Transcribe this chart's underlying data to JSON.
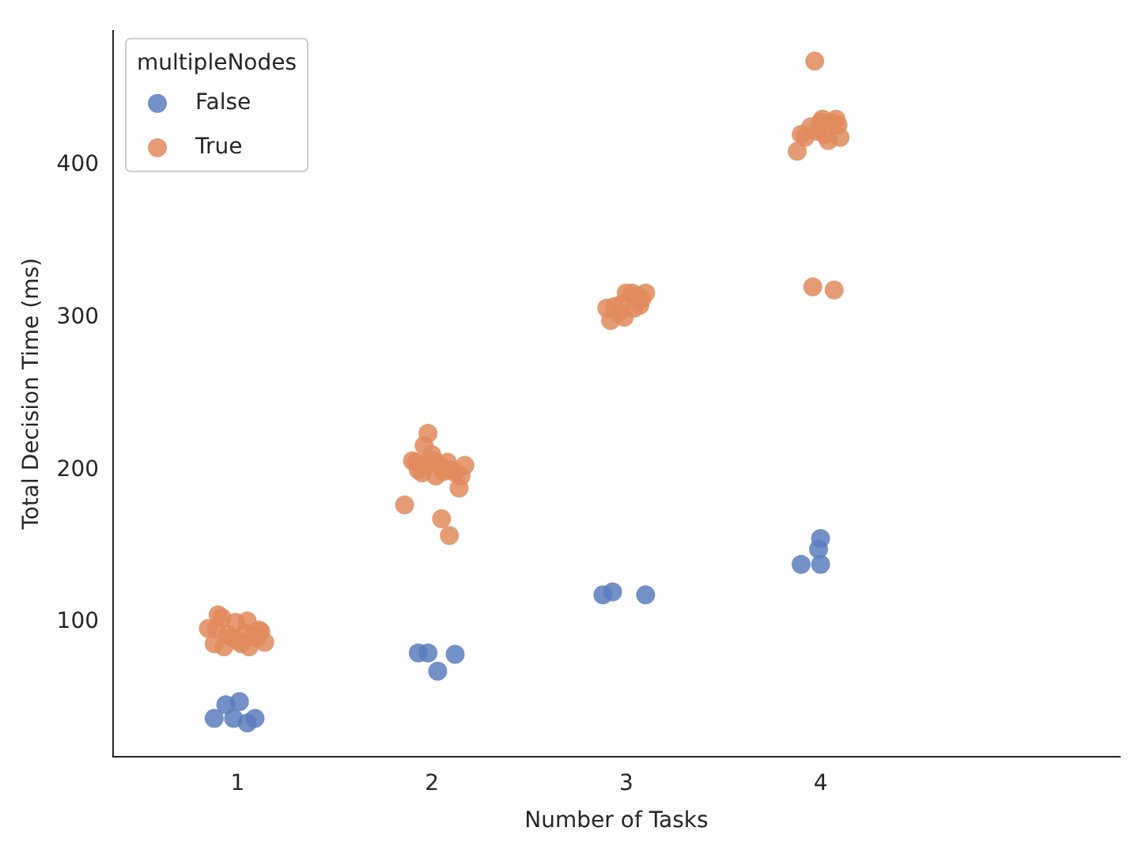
{
  "chart_data": {
    "type": "scatter",
    "xlabel": "Number of Tasks",
    "ylabel": "Total Decision Time (ms)",
    "legend_title": "multipleNodes",
    "legend": "top left",
    "marker": "circle",
    "grid": false,
    "xlim": [
      0.36,
      5.54
    ],
    "xticks": [
      1,
      2,
      3,
      4
    ],
    "ylim": [
      12,
      488
    ],
    "yticks": [
      100,
      200,
      300,
      400
    ],
    "series": [
      {
        "name": "False",
        "color": "#5b7dbd",
        "x": [
          0.88,
          0.94,
          1.01,
          0.98,
          1.09,
          1.05,
          1.93,
          1.98,
          2.03,
          2.12,
          2.88,
          2.93,
          3.1,
          3.9,
          3.99,
          4.0,
          4.0
        ],
        "values": [
          37,
          46,
          48,
          37,
          37,
          34,
          80,
          80,
          68,
          79,
          118,
          120,
          118,
          138,
          148,
          155,
          138
        ]
      },
      {
        "name": "True",
        "color": "#e08b5c",
        "x": [
          0.85,
          0.88,
          0.9,
          0.93,
          0.95,
          0.97,
          1.0,
          1.02,
          1.04,
          1.06,
          1.08,
          1.1,
          1.12,
          1.14,
          0.92,
          0.99,
          1.05,
          0.89,
          1.11,
          1.86,
          1.9,
          1.93,
          1.95,
          1.97,
          2.0,
          2.02,
          2.04,
          2.06,
          2.08,
          2.1,
          2.12,
          1.96,
          1.98,
          2.01,
          2.05,
          2.09,
          2.14,
          2.15,
          2.17,
          1.92,
          2.99,
          2.9,
          2.92,
          2.94,
          2.96,
          3.0,
          3.04,
          3.06,
          3.08,
          3.1,
          2.98,
          3.03,
          3.07,
          3.88,
          3.9,
          3.92,
          3.95,
          3.98,
          4.0,
          4.02,
          4.04,
          4.06,
          4.08,
          4.1,
          3.97,
          4.01,
          4.07,
          3.96,
          4.09
        ],
        "values": [
          96,
          86,
          105,
          84,
          92,
          90,
          88,
          86,
          93,
          84,
          91,
          90,
          94,
          87,
          103,
          100,
          101,
          96,
          95,
          177,
          206,
          200,
          198,
          204,
          210,
          196,
          203,
          199,
          205,
          200,
          198,
          216,
          224,
          206,
          168,
          157,
          188,
          196,
          203,
          205,
          300,
          306,
          298,
          307,
          303,
          316,
          306,
          314,
          312,
          316,
          309,
          316,
          308,
          409,
          420,
          418,
          425,
          422,
          428,
          420,
          416,
          428,
          430,
          418,
          468,
          430,
          318,
          320,
          426
        ]
      }
    ]
  }
}
